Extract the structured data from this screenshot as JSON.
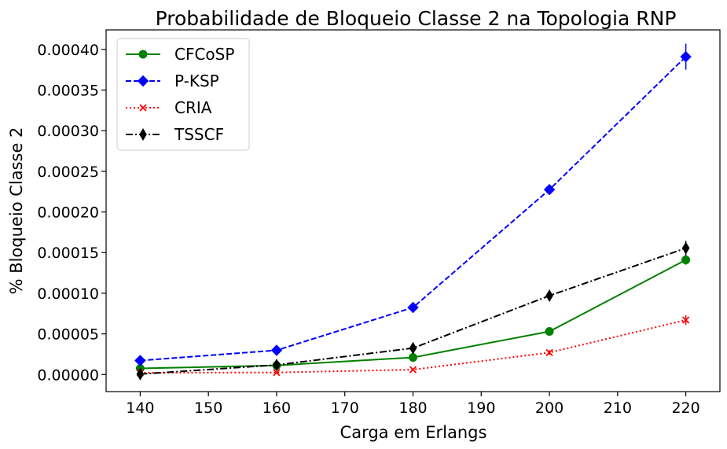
{
  "chart_data": {
    "type": "line",
    "title": "Probabilidade de Bloqueio Classe 2 na Topologia RNP",
    "xlabel": "Carga em Erlangs",
    "ylabel": "% Bloqueio Classe 2",
    "x": [
      140,
      160,
      180,
      200,
      220
    ],
    "xlim": [
      135,
      225
    ],
    "ylim": [
      -2.1e-05,
      0.000424
    ],
    "xticks": [
      "140",
      "150",
      "160",
      "170",
      "180",
      "190",
      "200",
      "210",
      "220"
    ],
    "yticks": [
      "0.00000",
      "0.00005",
      "0.00010",
      "0.00015",
      "0.00020",
      "0.00025",
      "0.00030",
      "0.00035",
      "0.00040"
    ],
    "grid": false,
    "legend": "top-left",
    "series": [
      {
        "name": "CFCoSP",
        "values": [
          7.5e-06,
          1.12e-05,
          2.1e-05,
          5.3e-05,
          0.000141
        ],
        "errors": [
          1e-06,
          1.5e-06,
          2e-06,
          5e-06,
          6e-06
        ],
        "color": "#008000",
        "linestyle": "solid",
        "marker": "circle"
      },
      {
        "name": "P-KSP",
        "values": [
          1.72e-05,
          2.98e-05,
          8.25e-05,
          0.0002275,
          0.000391
        ],
        "errors": [
          1.5e-06,
          2e-06,
          3e-06,
          5e-06,
          1.6e-05
        ],
        "color": "#0000ff",
        "linestyle": "dashed",
        "marker": "diamond"
      },
      {
        "name": "CRIA",
        "values": [
          2.2e-06,
          2.5e-06,
          6e-06,
          2.7e-05,
          6.7e-05
        ],
        "errors": [
          8e-07,
          8e-07,
          1.5e-06,
          3e-06,
          6e-06
        ],
        "color": "#ff0000",
        "linestyle": "dotted",
        "marker": "x"
      },
      {
        "name": "TSSCF",
        "values": [
          5e-07,
          1.18e-05,
          3.25e-05,
          9.7e-05,
          0.0001555
        ],
        "errors": [
          8e-07,
          2e-06,
          3e-06,
          7e-06,
          9e-06
        ],
        "color": "#000000",
        "linestyle": "dashdot",
        "marker": "thin_diamond"
      }
    ]
  }
}
